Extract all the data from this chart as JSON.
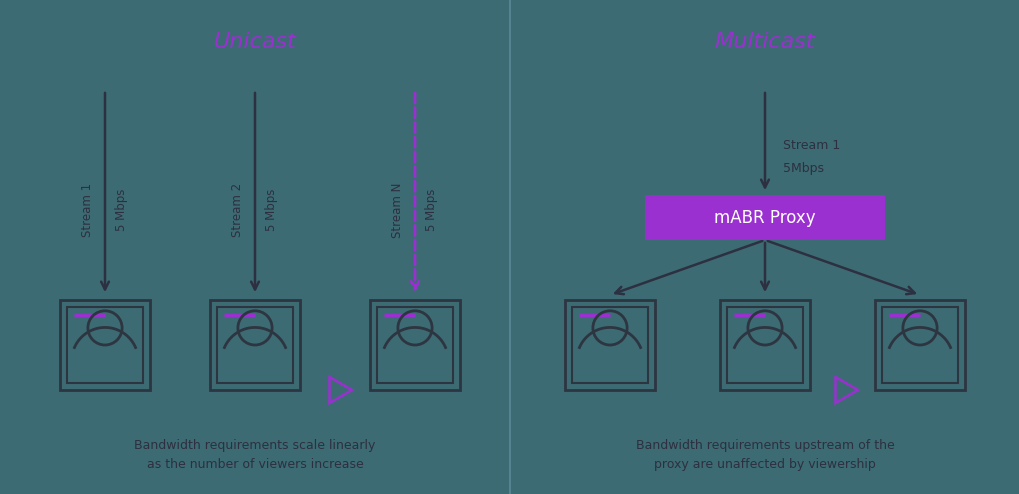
{
  "bg_color": "#3d6b74",
  "purple": "#9b30d0",
  "dark_text": "#2d3040",
  "white": "#ffffff",
  "icon_color": "#2d3540",
  "unicast_title": "Unicast",
  "multicast_title": "Multicast",
  "mabr_label": "mABR Proxy",
  "unicast_caption": "Bandwidth requirements scale linearly\nas the number of viewers increase",
  "multicast_caption": "Bandwidth requirements upstream of the\nproxy are unaffected by viewership",
  "figw": 10.2,
  "figh": 4.94,
  "dpi": 100
}
